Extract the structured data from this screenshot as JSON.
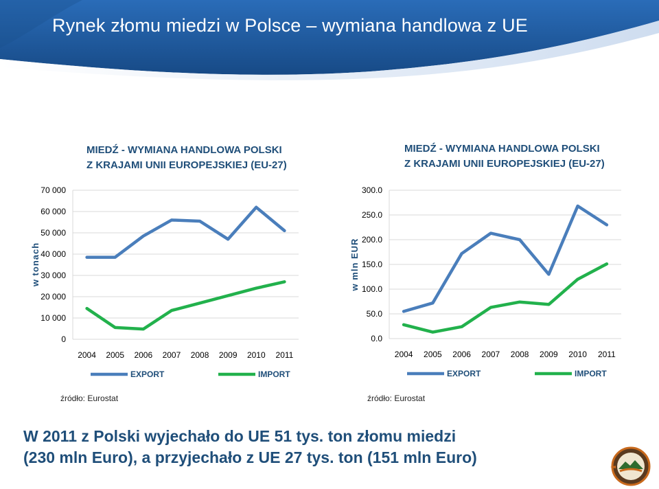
{
  "slide": {
    "title": "Rynek złomu miedzi w Polsce – wymiana handlowa z UE",
    "summary_line1": "W 2011 z Polski wyjechało do UE 51 tys. ton złomu miedzi",
    "summary_line2": "(230 mln Euro), a przyjechało z UE 27 tys. ton (151 mln Euro)",
    "colors": {
      "header": "#1f5fa6",
      "text": "#1f4e79",
      "export": "#4a7ebb",
      "import": "#22b14c"
    }
  },
  "chart_data": [
    {
      "type": "line",
      "title_line1": "MIEDŹ - WYMIANA HANDLOWA POLSKI",
      "title_line2": "Z KRAJAMI UNII EUROPEJSKIEJ (EU-27)",
      "ylabel": "w tonach",
      "xlabel": "",
      "categories": [
        "2004",
        "2005",
        "2006",
        "2007",
        "2008",
        "2009",
        "2010",
        "2011"
      ],
      "ylim": [
        0,
        70000
      ],
      "yticks": [
        0,
        10000,
        20000,
        30000,
        40000,
        50000,
        60000,
        70000
      ],
      "ytick_labels": [
        "0",
        "10 000",
        "20 000",
        "30 000",
        "40 000",
        "50 000",
        "60 000",
        "70 000"
      ],
      "grid": true,
      "legend_position": "bottom",
      "series": [
        {
          "name": "EXPORT",
          "color": "#4a7ebb",
          "values": [
            38500,
            38500,
            48500,
            56000,
            55500,
            47000,
            62000,
            51000
          ]
        },
        {
          "name": "IMPORT",
          "color": "#22b14c",
          "values": [
            14500,
            5500,
            4800,
            13500,
            17000,
            20500,
            24000,
            27000
          ]
        }
      ],
      "source": "źródło: Eurostat"
    },
    {
      "type": "line",
      "title_line1": "MIEDŹ - WYMIANA HANDLOWA POLSKI",
      "title_line2": "Z KRAJAMI UNII EUROPEJSKIEJ (EU-27)",
      "ylabel": "w mln EUR",
      "xlabel": "",
      "categories": [
        "2004",
        "2005",
        "2006",
        "2007",
        "2008",
        "2009",
        "2010",
        "2011"
      ],
      "ylim": [
        0,
        300
      ],
      "yticks": [
        0,
        50,
        100,
        150,
        200,
        250,
        300
      ],
      "ytick_labels": [
        "0.0",
        "50.0",
        "100.0",
        "150.0",
        "200.0",
        "250.0",
        "300.0"
      ],
      "grid": true,
      "legend_position": "bottom",
      "series": [
        {
          "name": "EXPORT",
          "color": "#4a7ebb",
          "values": [
            55,
            72,
            172,
            213,
            200,
            130,
            268,
            230
          ]
        },
        {
          "name": "IMPORT",
          "color": "#22b14c",
          "values": [
            28,
            13,
            24,
            63,
            74,
            69,
            120,
            151
          ]
        }
      ],
      "source": "źródło: Eurostat"
    }
  ]
}
